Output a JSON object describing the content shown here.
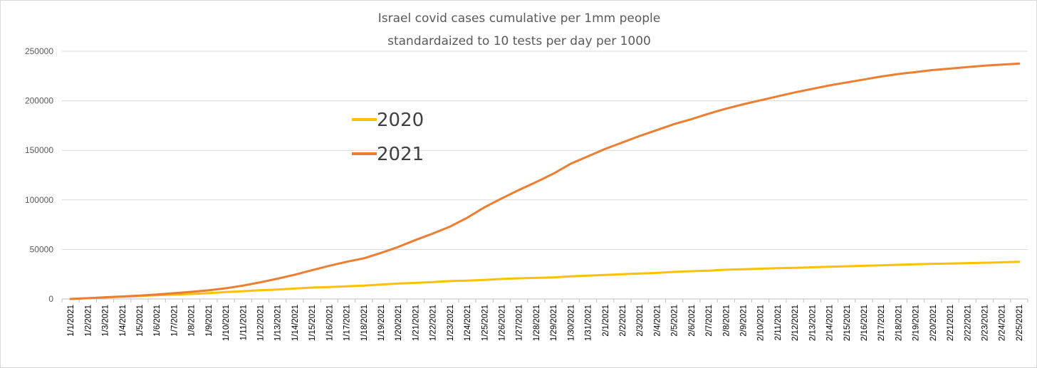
{
  "chart_data": {
    "type": "line",
    "title": [
      "Israel covid cases cumulative per 1mm people",
      "standardaized to 10 tests per day per 1000"
    ],
    "xlabel": "",
    "ylabel": "",
    "ylim": [
      0,
      250000
    ],
    "yticks": [
      "0",
      "50000",
      "100000",
      "150000",
      "200000",
      "250000"
    ],
    "grid": "horizontal",
    "legend_position": "center-left",
    "categories": [
      "1/1/2021",
      "1/2/2021",
      "1/3/2021",
      "1/4/2021",
      "1/5/2021",
      "1/6/2021",
      "1/7/2021",
      "1/8/2021",
      "1/9/2021",
      "1/10/2021",
      "1/11/2021",
      "1/12/2021",
      "1/13/2021",
      "1/14/2021",
      "1/15/2021",
      "1/16/2021",
      "1/17/2021",
      "1/18/2021",
      "1/19/2021",
      "1/20/2021",
      "1/21/2021",
      "1/22/2021",
      "1/23/2021",
      "1/24/2021",
      "1/25/2021",
      "1/26/2021",
      "1/27/2021",
      "1/28/2021",
      "1/29/2021",
      "1/30/2021",
      "1/31/2021",
      "2/1/2021",
      "2/2/2021",
      "2/3/2021",
      "2/4/2021",
      "2/5/2021",
      "2/6/2021",
      "2/7/2021",
      "2/8/2021",
      "2/9/2021",
      "2/10/2021",
      "2/11/2021",
      "2/12/2021",
      "2/13/2021",
      "2/14/2021",
      "2/15/2021",
      "2/16/2021",
      "2/17/2021",
      "2/18/2021",
      "2/19/2021",
      "2/20/2021",
      "2/21/2021",
      "2/22/2021",
      "2/23/2021",
      "2/24/2021",
      "2/25/2021"
    ],
    "series": [
      {
        "name": "2020",
        "color": "#FFC000",
        "values": [
          0,
          700,
          1500,
          2200,
          3000,
          3700,
          4300,
          5000,
          5800,
          7000,
          7800,
          8800,
          9500,
          10500,
          11500,
          12000,
          12800,
          13500,
          14500,
          15500,
          16200,
          17000,
          18000,
          18500,
          19200,
          20200,
          20800,
          21300,
          21800,
          22800,
          23500,
          24200,
          25000,
          25700,
          26300,
          27300,
          28000,
          28500,
          29500,
          30000,
          30500,
          31000,
          31500,
          32000,
          32500,
          33000,
          33500,
          34000,
          34500,
          35000,
          35500,
          35800,
          36200,
          36600,
          37000,
          37500
        ]
      },
      {
        "name": "2021",
        "color": "#ED7D31",
        "values": [
          0,
          800,
          1700,
          2500,
          3400,
          4500,
          5800,
          7200,
          8700,
          10800,
          13500,
          16800,
          20500,
          24500,
          29000,
          33500,
          37500,
          41000,
          46500,
          52500,
          59500,
          66000,
          73000,
          82000,
          92500,
          101500,
          110000,
          118000,
          126500,
          136500,
          144000,
          151500,
          158000,
          164500,
          170500,
          176500,
          181500,
          187000,
          192000,
          196500,
          200500,
          204500,
          208500,
          212000,
          215500,
          218500,
          221500,
          224500,
          227000,
          229000,
          231000,
          232500,
          234000,
          235500,
          236500,
          237500
        ]
      }
    ]
  }
}
